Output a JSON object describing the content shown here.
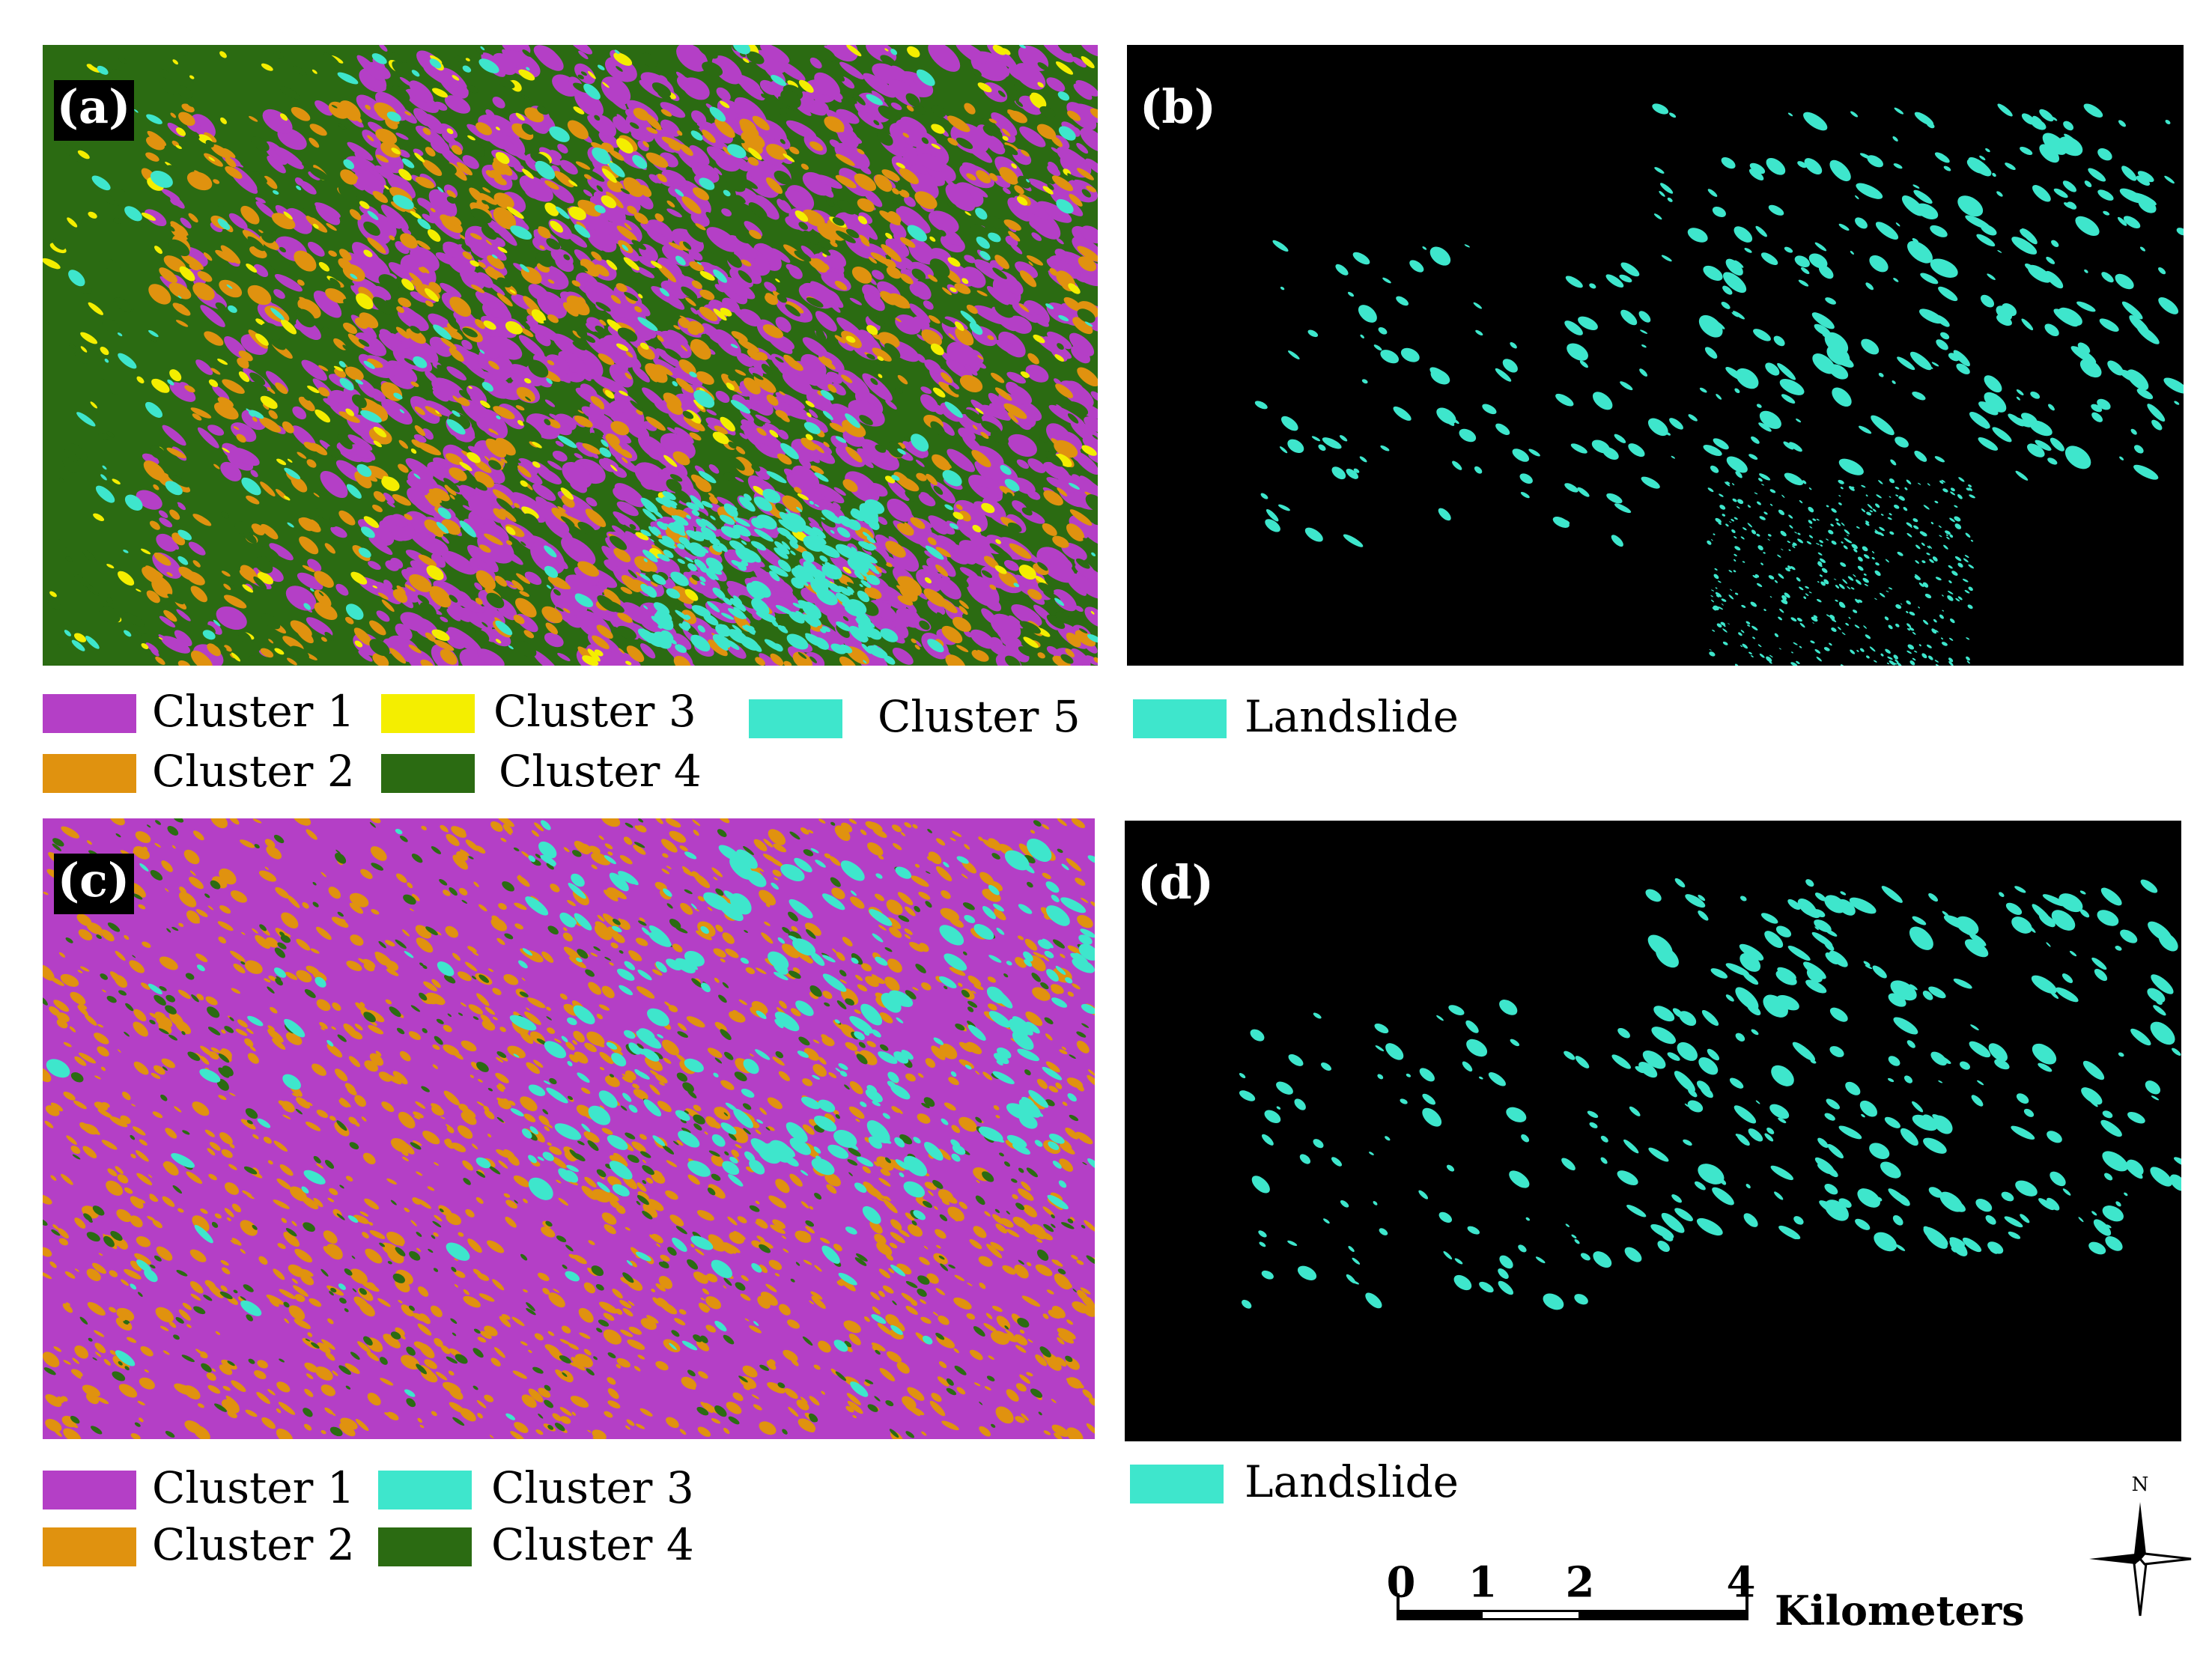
{
  "panels": [
    {
      "label": "(a)",
      "legend": [
        {
          "name": "Cluster 1",
          "color": "#b43fc6"
        },
        {
          "name": "Cluster 2",
          "color": "#e0920f"
        },
        {
          "name": "Cluster 3",
          "color": "#f4ee00"
        },
        {
          "name": "Cluster 4",
          "color": "#2b6b12"
        },
        {
          "name": "Cluster 5",
          "color": "#3ee6cc"
        }
      ]
    },
    {
      "label": "(b)",
      "legend": [
        {
          "name": "Landslide",
          "color": "#3ee6cc"
        }
      ]
    },
    {
      "label": "(c)",
      "legend": [
        {
          "name": "Cluster 1",
          "color": "#b43fc6"
        },
        {
          "name": "Cluster 2",
          "color": "#e0920f"
        },
        {
          "name": "Cluster 3",
          "color": "#3ee6cc"
        },
        {
          "name": "Cluster 4",
          "color": "#2b6b12"
        }
      ]
    },
    {
      "label": "(d)",
      "legend": [
        {
          "name": "Landslide",
          "color": "#3ee6cc"
        }
      ]
    }
  ],
  "scale_bar": {
    "ticks": [
      "0",
      "1",
      "2",
      "4"
    ],
    "unit": "Kilometers"
  },
  "north": "N"
}
